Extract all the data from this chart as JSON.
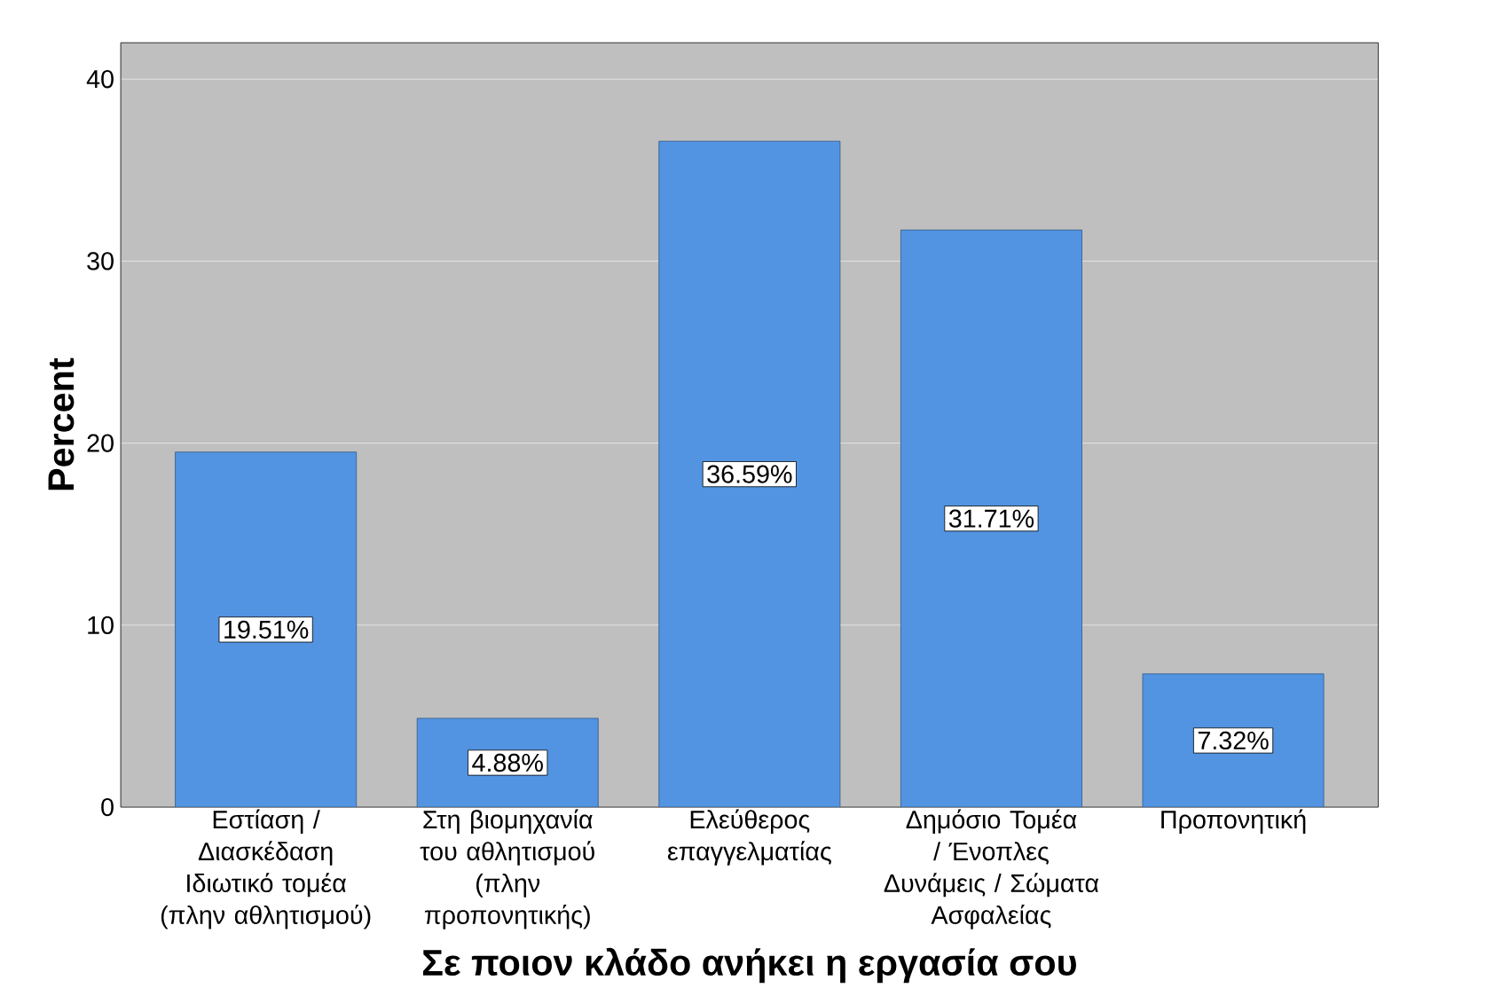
{
  "chart_data": {
    "type": "bar",
    "xlabel": "Σε ποιον κλάδο ανήκει η εργασία σου",
    "ylabel": "Percent",
    "categories": [
      "Εστίαση / Διασκέδαση Ιδιωτικό τομέα (πλην αθλητισμού)",
      "Στη βιομηχανία του αθλητισμού (πλην προπονητικής)",
      "Ελεύθερος επαγγελματίας",
      "Δημόσιο Τομέα / Ένοπλες Δυνάμεις / Σώματα Ασφαλείας",
      "Προπονητική"
    ],
    "values": [
      19.51,
      4.88,
      36.59,
      31.71,
      7.32
    ],
    "value_labels": [
      "19.51%",
      "4.88%",
      "36.59%",
      "31.71%",
      "7.32%"
    ],
    "color": "#5294e2",
    "ylim": [
      0,
      42
    ],
    "yticks": [
      0,
      10,
      20,
      30,
      40
    ],
    "grid": "y"
  }
}
